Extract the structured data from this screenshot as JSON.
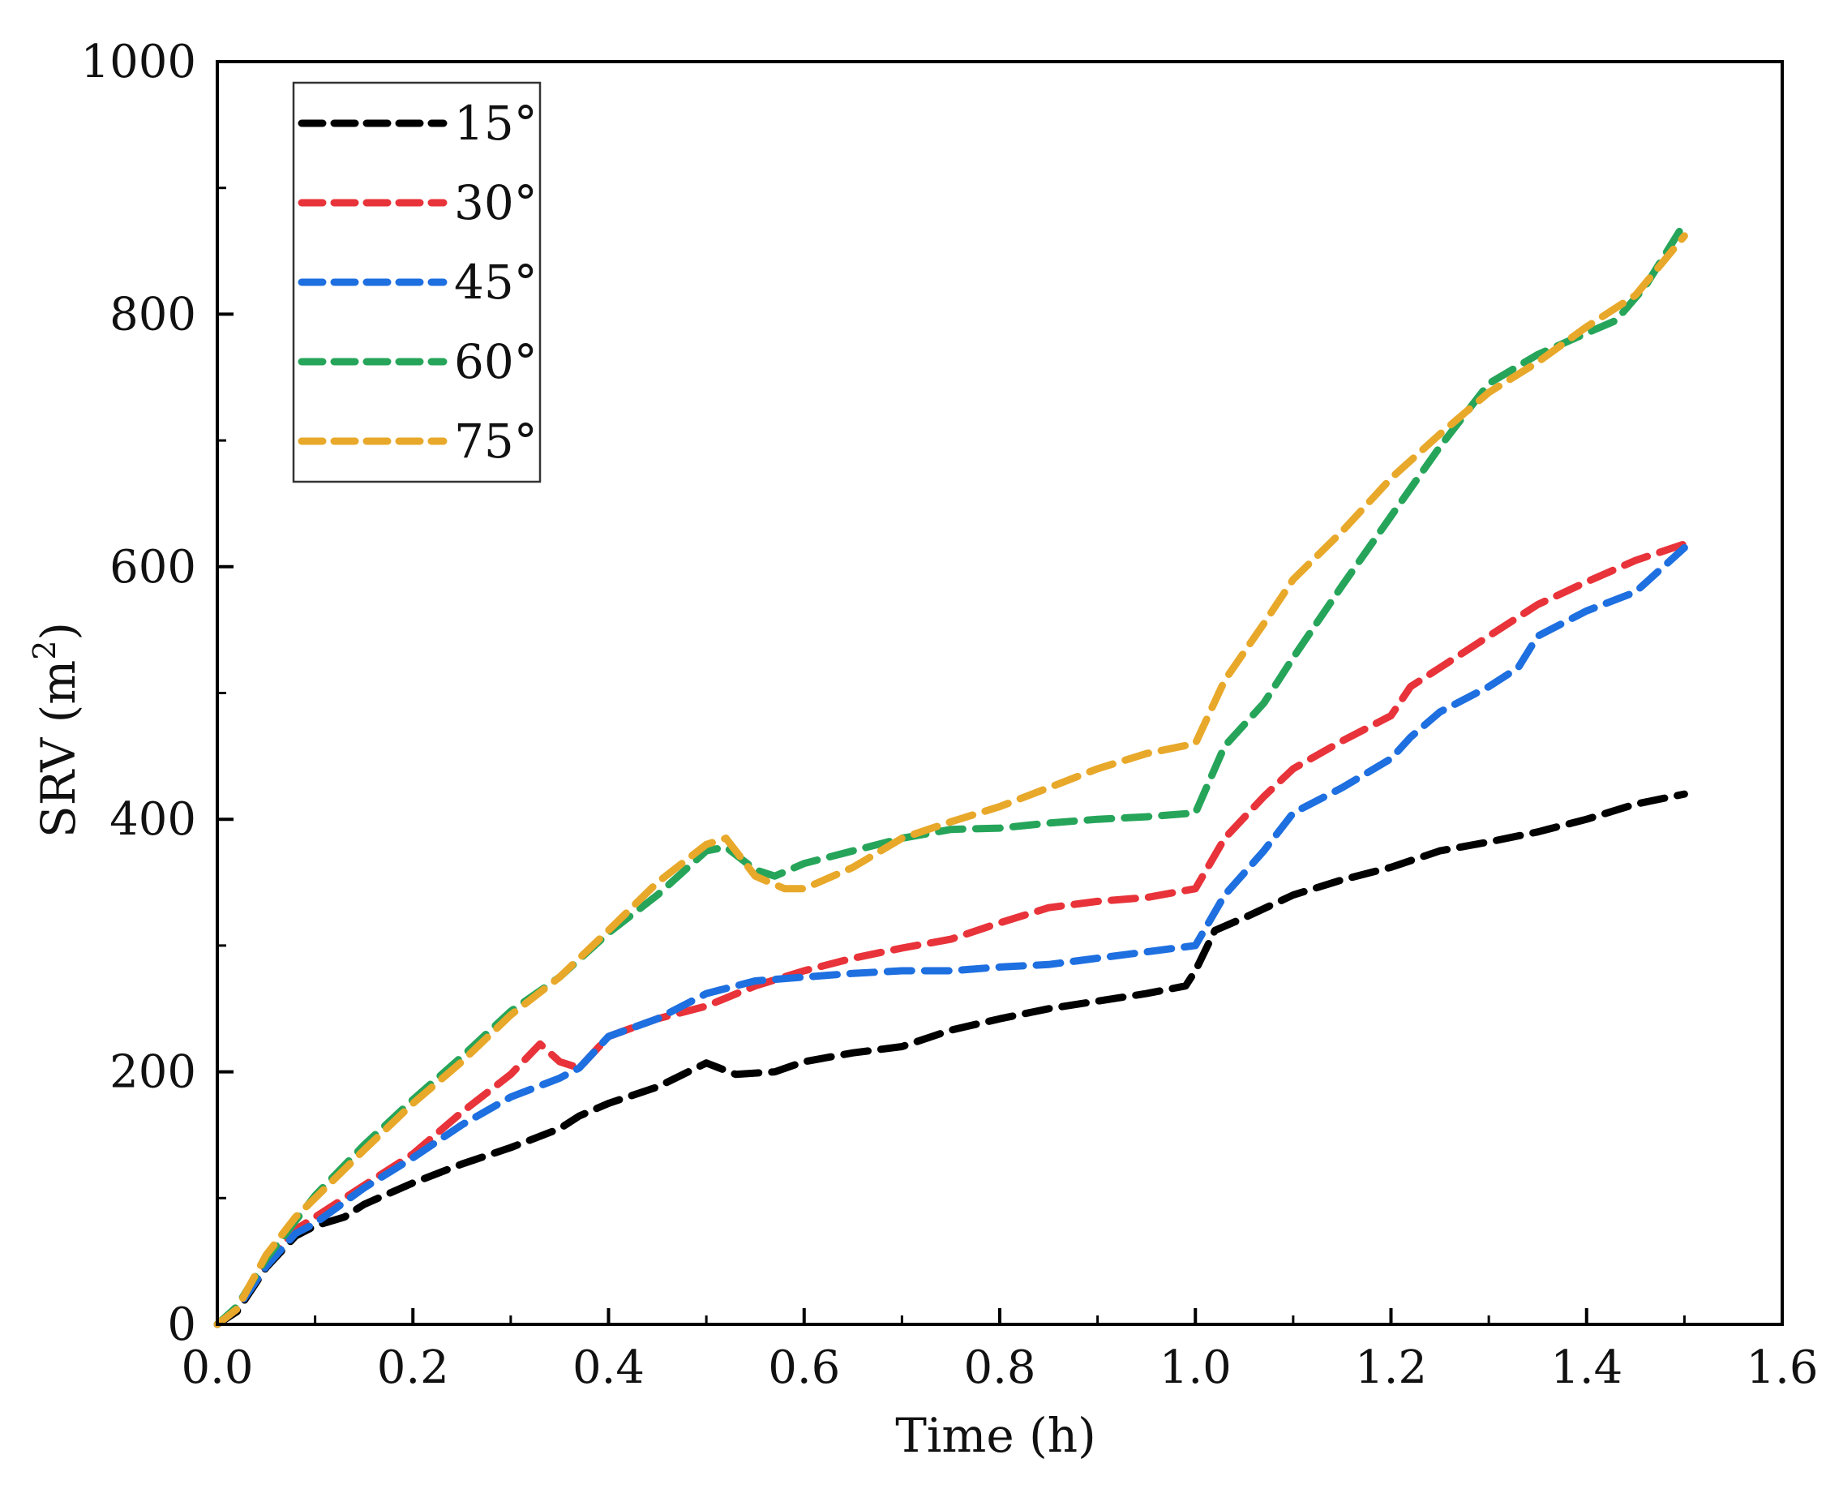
{
  "chart_data": {
    "type": "line",
    "title": "",
    "xlabel": "Time (h)",
    "ylabel": "SRV (m",
    "ylabel_sup": "2",
    "ylabel_close": ")",
    "xlim": [
      0.0,
      1.6
    ],
    "ylim": [
      0,
      1000
    ],
    "x_ticks": [
      0.0,
      0.2,
      0.4,
      0.6,
      0.8,
      1.0,
      1.2,
      1.4,
      1.6
    ],
    "x_tick_labels": [
      "0.0",
      "0.2",
      "0.4",
      "0.6",
      "0.8",
      "1.0",
      "1.2",
      "1.4",
      "1.6"
    ],
    "y_ticks": [
      0,
      200,
      400,
      600,
      800,
      1000
    ],
    "y_tick_labels": [
      "0",
      "200",
      "400",
      "600",
      "800",
      "1000"
    ],
    "grid": false,
    "legend_position": "top-left",
    "line_style": "dashed",
    "series": [
      {
        "name": "15°",
        "color": "#000000",
        "points": [
          [
            0.0,
            0
          ],
          [
            0.02,
            10
          ],
          [
            0.05,
            45
          ],
          [
            0.08,
            70
          ],
          [
            0.1,
            78
          ],
          [
            0.13,
            85
          ],
          [
            0.15,
            95
          ],
          [
            0.2,
            112
          ],
          [
            0.25,
            127
          ],
          [
            0.3,
            140
          ],
          [
            0.35,
            155
          ],
          [
            0.37,
            165
          ],
          [
            0.4,
            175
          ],
          [
            0.45,
            188
          ],
          [
            0.5,
            207
          ],
          [
            0.53,
            198
          ],
          [
            0.57,
            200
          ],
          [
            0.6,
            208
          ],
          [
            0.65,
            215
          ],
          [
            0.7,
            220
          ],
          [
            0.75,
            233
          ],
          [
            0.8,
            242
          ],
          [
            0.85,
            250
          ],
          [
            0.9,
            256
          ],
          [
            0.95,
            262
          ],
          [
            0.99,
            268
          ],
          [
            1.0,
            280
          ],
          [
            1.02,
            312
          ],
          [
            1.05,
            322
          ],
          [
            1.1,
            340
          ],
          [
            1.15,
            352
          ],
          [
            1.2,
            362
          ],
          [
            1.25,
            375
          ],
          [
            1.3,
            382
          ],
          [
            1.35,
            390
          ],
          [
            1.4,
            400
          ],
          [
            1.45,
            412
          ],
          [
            1.5,
            420
          ]
        ]
      },
      {
        "name": "30°",
        "color": "#e8333a",
        "points": [
          [
            0.0,
            0
          ],
          [
            0.02,
            12
          ],
          [
            0.05,
            48
          ],
          [
            0.08,
            75
          ],
          [
            0.1,
            85
          ],
          [
            0.15,
            110
          ],
          [
            0.2,
            135
          ],
          [
            0.25,
            168
          ],
          [
            0.3,
            198
          ],
          [
            0.33,
            222
          ],
          [
            0.35,
            208
          ],
          [
            0.37,
            203
          ],
          [
            0.4,
            228
          ],
          [
            0.45,
            242
          ],
          [
            0.5,
            252
          ],
          [
            0.55,
            268
          ],
          [
            0.6,
            280
          ],
          [
            0.65,
            290
          ],
          [
            0.7,
            298
          ],
          [
            0.75,
            305
          ],
          [
            0.8,
            318
          ],
          [
            0.85,
            330
          ],
          [
            0.9,
            335
          ],
          [
            0.95,
            338
          ],
          [
            1.0,
            345
          ],
          [
            1.03,
            385
          ],
          [
            1.07,
            418
          ],
          [
            1.1,
            440
          ],
          [
            1.15,
            462
          ],
          [
            1.2,
            482
          ],
          [
            1.22,
            505
          ],
          [
            1.25,
            520
          ],
          [
            1.3,
            545
          ],
          [
            1.35,
            570
          ],
          [
            1.4,
            588
          ],
          [
            1.45,
            605
          ],
          [
            1.5,
            618
          ]
        ]
      },
      {
        "name": "45°",
        "color": "#1e6fe0",
        "points": [
          [
            0.0,
            0
          ],
          [
            0.02,
            12
          ],
          [
            0.05,
            46
          ],
          [
            0.08,
            72
          ],
          [
            0.1,
            80
          ],
          [
            0.15,
            108
          ],
          [
            0.2,
            132
          ],
          [
            0.25,
            158
          ],
          [
            0.3,
            180
          ],
          [
            0.35,
            195
          ],
          [
            0.37,
            203
          ],
          [
            0.4,
            228
          ],
          [
            0.45,
            242
          ],
          [
            0.5,
            262
          ],
          [
            0.55,
            272
          ],
          [
            0.6,
            275
          ],
          [
            0.65,
            278
          ],
          [
            0.7,
            280
          ],
          [
            0.75,
            280
          ],
          [
            0.8,
            283
          ],
          [
            0.85,
            285
          ],
          [
            0.9,
            290
          ],
          [
            0.95,
            295
          ],
          [
            1.0,
            300
          ],
          [
            1.03,
            340
          ],
          [
            1.07,
            375
          ],
          [
            1.1,
            405
          ],
          [
            1.15,
            425
          ],
          [
            1.2,
            448
          ],
          [
            1.22,
            465
          ],
          [
            1.25,
            485
          ],
          [
            1.3,
            505
          ],
          [
            1.33,
            520
          ],
          [
            1.35,
            545
          ],
          [
            1.4,
            565
          ],
          [
            1.45,
            580
          ],
          [
            1.5,
            615
          ]
        ]
      },
      {
        "name": "60°",
        "color": "#26a55a",
        "points": [
          [
            0.0,
            0
          ],
          [
            0.02,
            14
          ],
          [
            0.05,
            52
          ],
          [
            0.08,
            82
          ],
          [
            0.1,
            102
          ],
          [
            0.15,
            142
          ],
          [
            0.2,
            178
          ],
          [
            0.25,
            212
          ],
          [
            0.3,
            248
          ],
          [
            0.35,
            275
          ],
          [
            0.4,
            310
          ],
          [
            0.45,
            340
          ],
          [
            0.5,
            375
          ],
          [
            0.52,
            378
          ],
          [
            0.55,
            360
          ],
          [
            0.57,
            355
          ],
          [
            0.6,
            365
          ],
          [
            0.65,
            375
          ],
          [
            0.7,
            385
          ],
          [
            0.75,
            392
          ],
          [
            0.8,
            393
          ],
          [
            0.85,
            397
          ],
          [
            0.9,
            400
          ],
          [
            0.95,
            402
          ],
          [
            1.0,
            405
          ],
          [
            1.03,
            458
          ],
          [
            1.07,
            492
          ],
          [
            1.1,
            528
          ],
          [
            1.15,
            585
          ],
          [
            1.2,
            640
          ],
          [
            1.25,
            695
          ],
          [
            1.3,
            745
          ],
          [
            1.35,
            768
          ],
          [
            1.4,
            785
          ],
          [
            1.43,
            795
          ],
          [
            1.46,
            822
          ],
          [
            1.5,
            872
          ]
        ]
      },
      {
        "name": "75°",
        "color": "#e8a82a",
        "points": [
          [
            0.0,
            0
          ],
          [
            0.02,
            12
          ],
          [
            0.05,
            55
          ],
          [
            0.08,
            85
          ],
          [
            0.1,
            100
          ],
          [
            0.15,
            138
          ],
          [
            0.2,
            175
          ],
          [
            0.25,
            208
          ],
          [
            0.3,
            245
          ],
          [
            0.35,
            275
          ],
          [
            0.4,
            312
          ],
          [
            0.45,
            350
          ],
          [
            0.5,
            380
          ],
          [
            0.52,
            385
          ],
          [
            0.55,
            355
          ],
          [
            0.58,
            345
          ],
          [
            0.6,
            345
          ],
          [
            0.65,
            362
          ],
          [
            0.7,
            385
          ],
          [
            0.75,
            398
          ],
          [
            0.8,
            410
          ],
          [
            0.85,
            425
          ],
          [
            0.9,
            440
          ],
          [
            0.95,
            452
          ],
          [
            1.0,
            460
          ],
          [
            1.03,
            510
          ],
          [
            1.07,
            555
          ],
          [
            1.1,
            590
          ],
          [
            1.15,
            628
          ],
          [
            1.2,
            670
          ],
          [
            1.25,
            705
          ],
          [
            1.3,
            738
          ],
          [
            1.35,
            762
          ],
          [
            1.4,
            790
          ],
          [
            1.45,
            815
          ],
          [
            1.5,
            862
          ]
        ]
      }
    ]
  }
}
